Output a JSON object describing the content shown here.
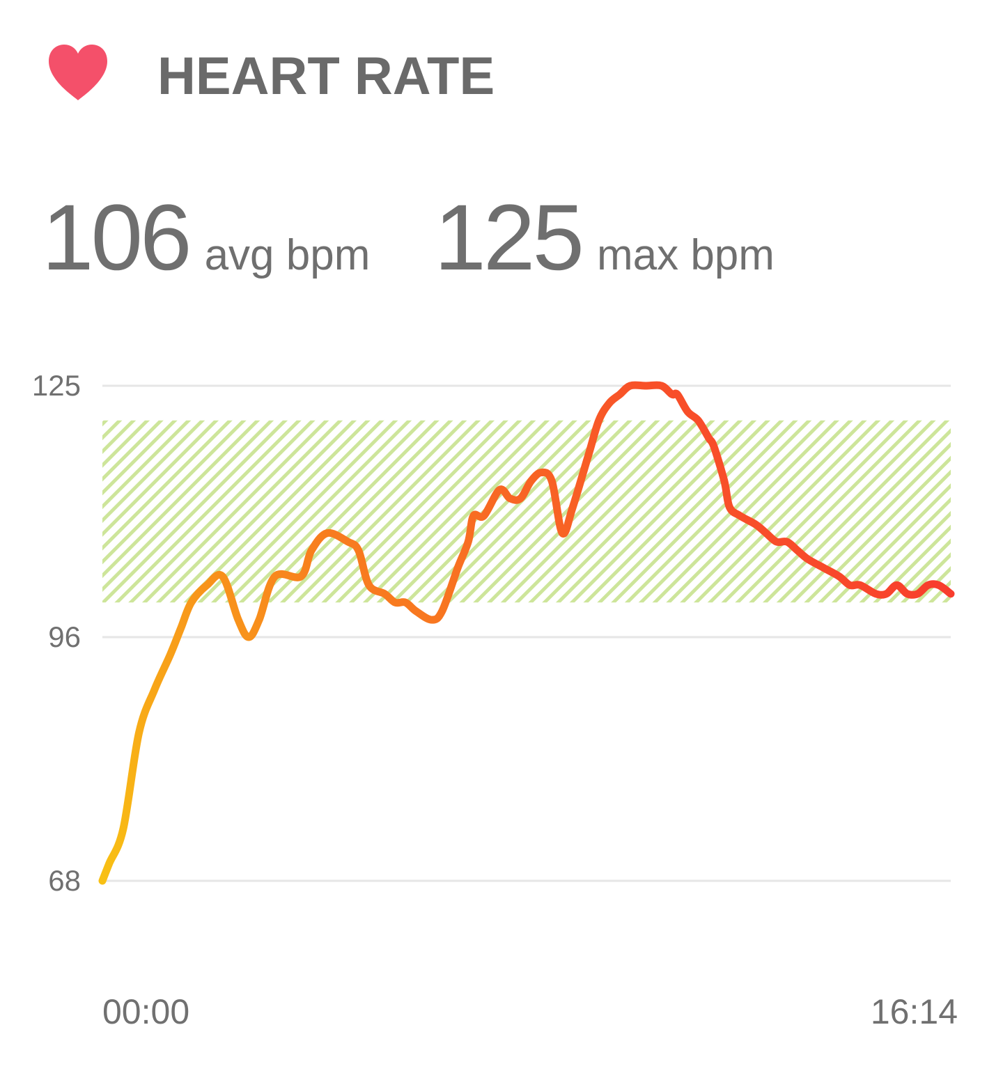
{
  "header": {
    "title": "HEART RATE",
    "icon": "heart-icon",
    "icon_color": "#f4506a"
  },
  "stats": {
    "avg_value": "106",
    "avg_unit": "avg bpm",
    "max_value": "125",
    "max_unit": "max bpm"
  },
  "colors": {
    "line_start": "#f8c014",
    "line_mid": "#f8801e",
    "line_end": "#f83030",
    "zone_hatch": "#cde59a",
    "gridline": "#e6e6e6"
  },
  "chart_data": {
    "type": "line",
    "title": "",
    "xlabel": "",
    "ylabel": "",
    "y_ticks": [
      "125",
      "96",
      "68"
    ],
    "y_tick_values": [
      125,
      96,
      68
    ],
    "x_tick_labels": [
      "00:00",
      "16:14"
    ],
    "xlim": [
      0,
      16.233
    ],
    "ylim": [
      68,
      125
    ],
    "grid": true,
    "target_zone": [
      100,
      121
    ],
    "series": [
      {
        "x": [
          0,
          0.13,
          0.4,
          0.7,
          1.0,
          1.3,
          1.5,
          1.7,
          2.0,
          2.3,
          2.6,
          2.8,
          3.0,
          3.3,
          3.8,
          4.0,
          4.3,
          4.7,
          4.9,
          5.1,
          5.4,
          5.6,
          5.8,
          6.0,
          6.3,
          6.5,
          6.8,
          7.0,
          7.1,
          7.3,
          7.6,
          7.8,
          8.0,
          8.2,
          8.4,
          8.6,
          8.8,
          9.0,
          9.3,
          9.5,
          9.7,
          9.9,
          10.1,
          10.4,
          10.7,
          10.9,
          11.0,
          11.2,
          11.4,
          11.6,
          11.7,
          11.9,
          12.0,
          12.2,
          12.5,
          12.7,
          12.9,
          13.1,
          13.3,
          13.5,
          13.8,
          14.1,
          14.3,
          14.5,
          14.8,
          15.0,
          15.2,
          15.4,
          15.6,
          15.8,
          16.0,
          16.233
        ],
        "y": [
          68,
          70,
          74,
          85,
          90,
          94,
          97,
          100,
          102,
          103,
          98,
          96,
          98,
          103,
          103,
          106,
          108,
          107,
          106,
          102,
          101,
          100,
          100,
          99,
          98,
          99,
          104,
          107,
          110,
          110,
          113,
          112,
          112,
          114,
          115,
          114,
          108,
          111,
          117,
          121,
          123,
          124,
          125,
          125,
          125,
          124,
          124,
          122,
          121,
          119,
          118,
          114,
          111,
          110,
          109,
          108,
          107,
          107,
          106,
          105,
          104,
          103,
          102,
          102,
          101,
          101,
          102,
          101,
          101,
          102,
          102,
          101
        ]
      }
    ]
  }
}
